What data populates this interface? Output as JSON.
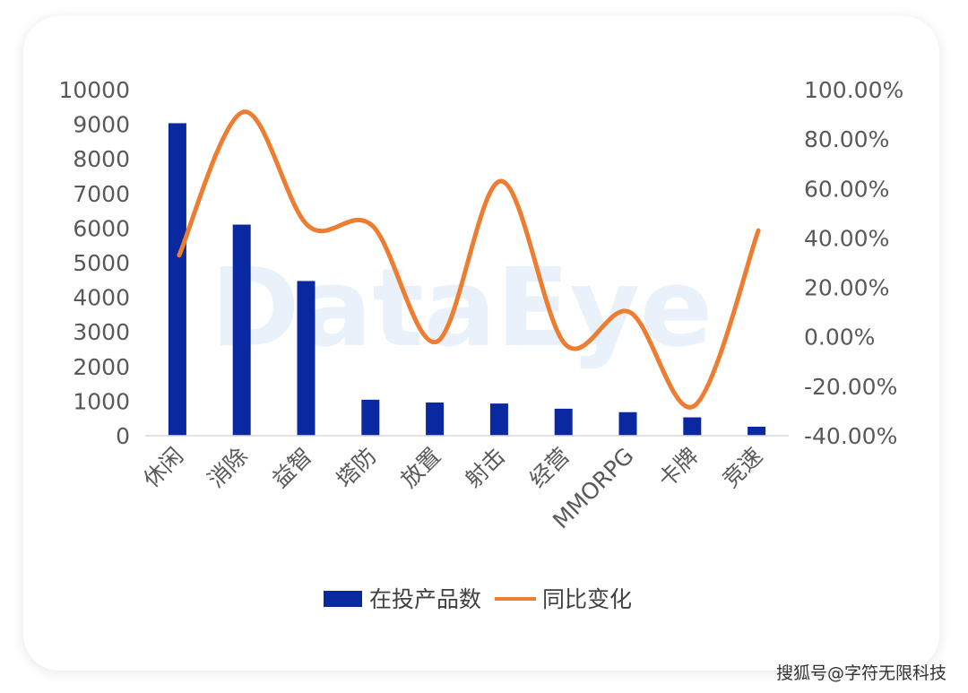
{
  "chart_data": {
    "type": "bar",
    "categories": [
      "休闲",
      "消除",
      "益智",
      "塔防",
      "放置",
      "射击",
      "经营",
      "MMORPG",
      "卡牌",
      "竞速"
    ],
    "series": [
      {
        "name": "在投产品数",
        "type": "bar",
        "axis": "left",
        "color": "#0a28a0",
        "values": [
          9030,
          6100,
          4470,
          1040,
          960,
          930,
          780,
          680,
          530,
          260
        ]
      },
      {
        "name": "同比变化",
        "type": "line",
        "axis": "right",
        "color": "#ed7d31",
        "values": [
          0.33,
          0.91,
          0.45,
          0.45,
          -0.02,
          0.63,
          -0.03,
          0.1,
          -0.28,
          0.43
        ]
      }
    ],
    "y_left": {
      "min": 0,
      "max": 10000,
      "ticks": [
        "0",
        "1000",
        "2000",
        "3000",
        "4000",
        "5000",
        "6000",
        "7000",
        "8000",
        "9000",
        "10000"
      ]
    },
    "y_right": {
      "min": -0.4,
      "max": 1.0,
      "ticks": [
        "-40.00%",
        "-20.00%",
        "0.00%",
        "20.00%",
        "40.00%",
        "60.00%",
        "80.00%",
        "100.00%"
      ]
    },
    "legend_position": "bottom",
    "grid": false
  },
  "watermark": "DataEye",
  "footer": {
    "credit": "搜狐号@字符无限科技"
  }
}
